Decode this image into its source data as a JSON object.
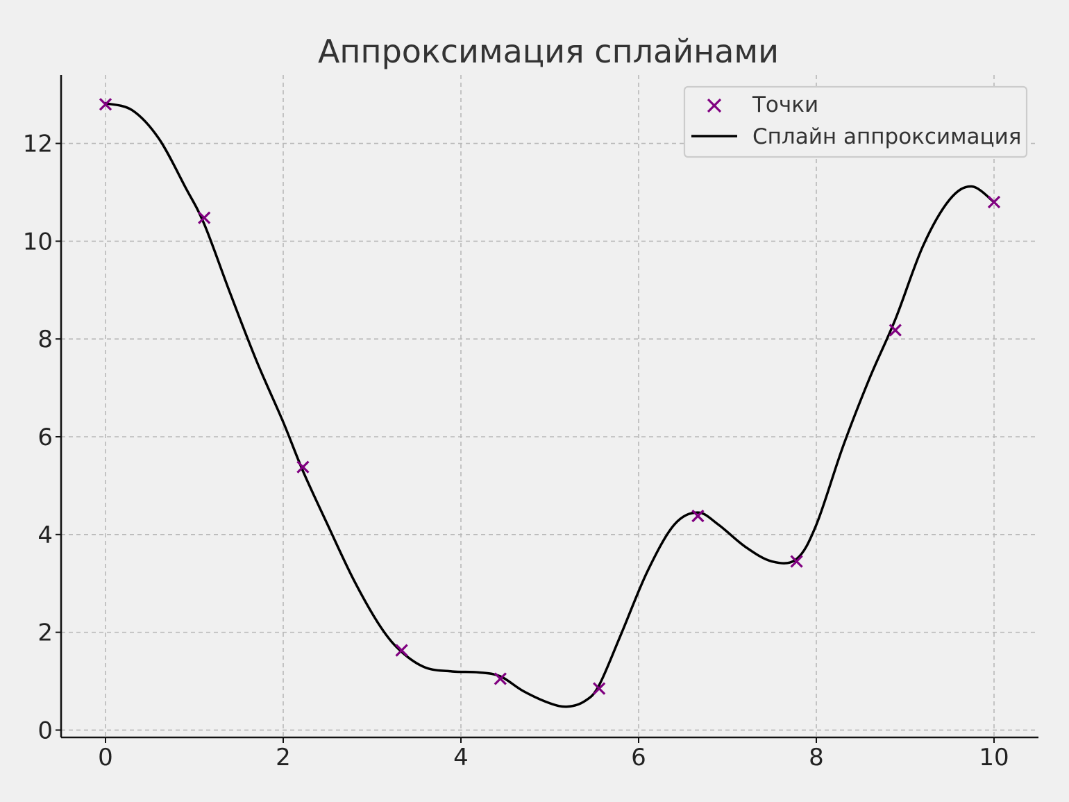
{
  "chart_data": {
    "type": "line",
    "title": "Аппроксимация сплайнами",
    "xlabel": "",
    "ylabel": "",
    "xlim": [
      -0.5,
      10.5
    ],
    "ylim": [
      -0.15,
      13.4
    ],
    "x_ticks": [
      0,
      2,
      4,
      6,
      8,
      10
    ],
    "y_ticks": [
      0,
      2,
      4,
      6,
      8,
      10,
      12
    ],
    "grid": true,
    "legend_position": "top-right",
    "series": [
      {
        "name": "Точки",
        "kind": "scatter",
        "marker": "x",
        "color": "#800080",
        "x": [
          0,
          1.111,
          2.222,
          3.333,
          4.444,
          5.556,
          6.667,
          7.778,
          8.889,
          10
        ],
        "y": [
          12.8,
          10.48,
          5.38,
          1.63,
          1.05,
          0.85,
          4.38,
          3.45,
          8.18,
          10.8
        ]
      },
      {
        "name": "Сплайн аппроксимация",
        "kind": "line",
        "color": "#000000",
        "x": [
          0,
          0.3,
          0.6,
          0.9,
          1.111,
          1.4,
          1.7,
          2.0,
          2.222,
          2.5,
          2.8,
          3.1,
          3.333,
          3.6,
          3.9,
          4.2,
          4.444,
          4.7,
          5.0,
          5.2,
          5.4,
          5.556,
          5.8,
          6.1,
          6.4,
          6.667,
          6.9,
          7.2,
          7.5,
          7.778,
          8.0,
          8.3,
          8.6,
          8.889,
          9.2,
          9.5,
          9.75,
          10
        ],
        "y": [
          12.82,
          12.68,
          12.1,
          11.1,
          10.35,
          8.95,
          7.55,
          6.3,
          5.3,
          4.2,
          3.05,
          2.1,
          1.6,
          1.28,
          1.2,
          1.18,
          1.1,
          0.8,
          0.55,
          0.48,
          0.6,
          0.92,
          1.95,
          3.25,
          4.2,
          4.45,
          4.2,
          3.75,
          3.45,
          3.5,
          4.2,
          5.8,
          7.2,
          8.4,
          9.9,
          10.85,
          11.12,
          10.8
        ]
      }
    ]
  }
}
